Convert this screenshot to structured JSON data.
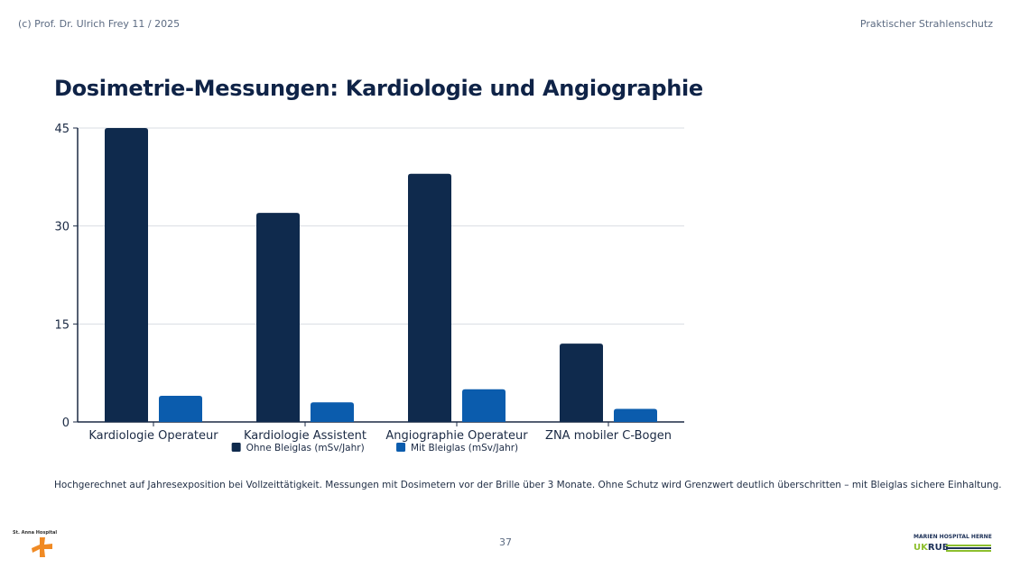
{
  "header": {
    "copyright": "(c) Prof. Dr. Ulrich Frey 11 / 2025",
    "section": "Praktischer Strahlenschutz"
  },
  "title": "Dosimetrie-Messungen: Kardiologie und Angiographie",
  "chart_data": {
    "type": "bar",
    "categories": [
      "Kardiologie Operateur",
      "Kardiologie Assistent",
      "Angiographie Operateur",
      "ZNA mobiler C-Bogen"
    ],
    "series": [
      {
        "name": "Ohne Bleiglas (mSv/Jahr)",
        "values": [
          45,
          32,
          38,
          12
        ],
        "color": "#0f2a4d"
      },
      {
        "name": "Mit Bleiglas (mSv/Jahr)",
        "values": [
          4,
          3,
          5,
          2
        ],
        "color": "#0b5cad"
      }
    ],
    "yticks": [
      0,
      15,
      30,
      45
    ],
    "ylim": [
      0,
      45
    ],
    "grid": true,
    "legend": "bottom-center"
  },
  "footnote": "Hochgerechnet auf Jahresexposition bei Vollzeittätigkeit. Messungen mit Dosimetern vor der Brille über 3 Monate. Ohne Schutz wird Grenzwert deutlich überschritten – mit Bleiglas sichere Einhaltung.",
  "page_number": "37",
  "logos": {
    "left": {
      "name": "St. Anna Hospital",
      "accent": "#f08a24"
    },
    "right": {
      "top": "MARIEN HOSPITAL HERNE",
      "uk": "UK",
      "rub": "RUB"
    }
  }
}
